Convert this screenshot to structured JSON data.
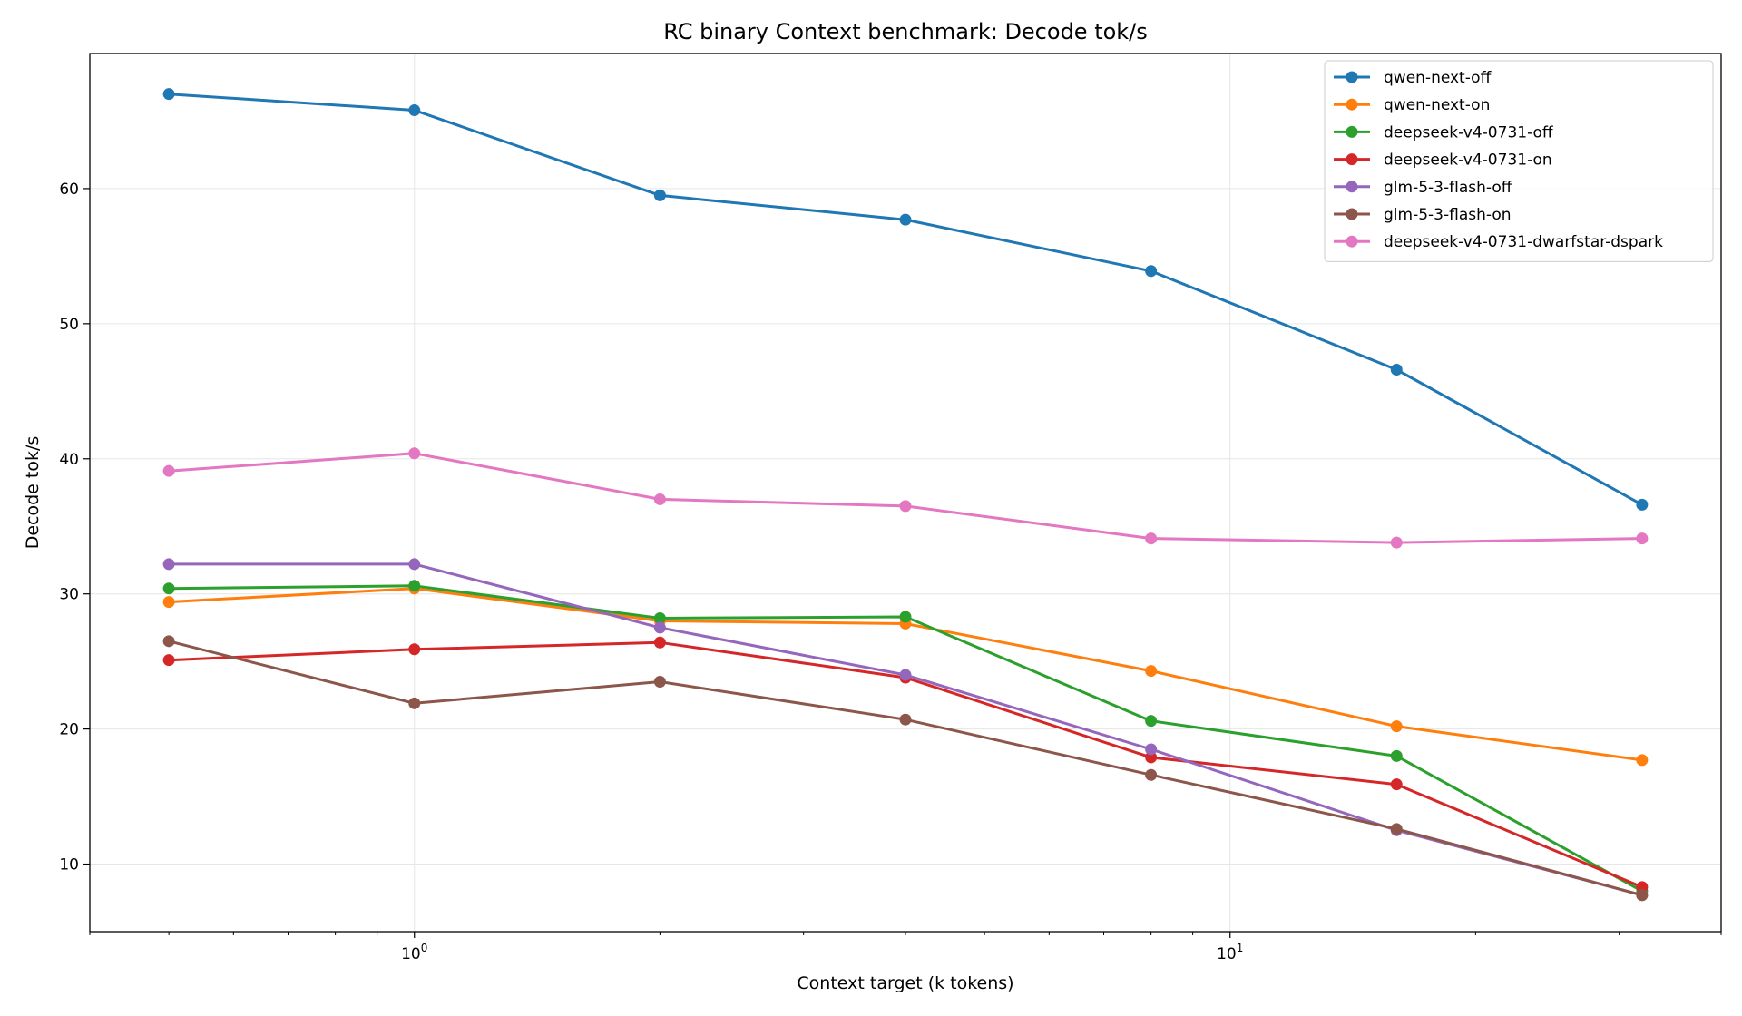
{
  "chart_data": {
    "type": "line",
    "title": "RC binary Context benchmark: Decode tok/s",
    "xlabel": "Context target (k tokens)",
    "ylabel": "Decode tok/s",
    "xscale": "log",
    "xlim": [
      0.4,
      40
    ],
    "ylim": [
      5,
      70
    ],
    "grid": true,
    "legend_position": "top-right",
    "x": [
      0.5,
      1,
      2,
      4,
      8,
      16,
      32
    ],
    "x_tick_labels": [
      {
        "value": 1,
        "base": "10",
        "exp": "0"
      },
      {
        "value": 10,
        "base": "10",
        "exp": "1"
      }
    ],
    "y_ticks": [
      10,
      20,
      30,
      40,
      50,
      60
    ],
    "series": [
      {
        "name": "qwen-next-off",
        "color": "#1f77b4",
        "values": [
          67.0,
          65.8,
          59.5,
          57.7,
          53.9,
          46.6,
          36.6
        ]
      },
      {
        "name": "qwen-next-on",
        "color": "#ff7f0e",
        "values": [
          29.4,
          30.4,
          28.0,
          27.8,
          24.3,
          20.2,
          17.7
        ]
      },
      {
        "name": "deepseek-v4-0731-off",
        "color": "#2ca02c",
        "values": [
          30.4,
          30.6,
          28.2,
          28.3,
          20.6,
          18.0,
          8.0
        ]
      },
      {
        "name": "deepseek-v4-0731-on",
        "color": "#d62728",
        "values": [
          25.1,
          25.9,
          26.4,
          23.8,
          17.9,
          15.9,
          8.3
        ]
      },
      {
        "name": "glm-5-3-flash-off",
        "color": "#9467bd",
        "values": [
          32.2,
          32.2,
          27.5,
          24.0,
          18.5,
          12.5,
          7.7
        ]
      },
      {
        "name": "glm-5-3-flash-on",
        "color": "#8c564b",
        "values": [
          26.5,
          21.9,
          23.5,
          20.7,
          16.6,
          12.6,
          7.7
        ]
      },
      {
        "name": "deepseek-v4-0731-dwarfstar-dspark",
        "color": "#e377c2",
        "values": [
          39.1,
          40.4,
          37.0,
          36.5,
          34.1,
          33.8,
          34.1
        ]
      }
    ]
  }
}
